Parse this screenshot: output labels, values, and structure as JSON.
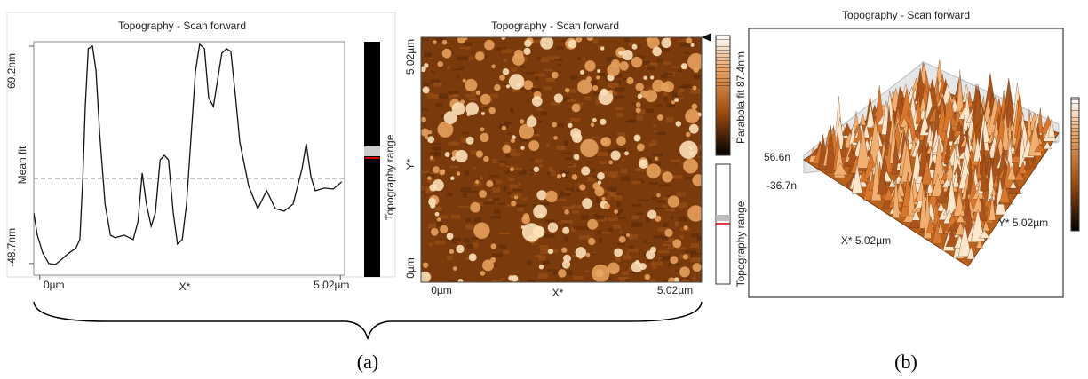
{
  "chart_data": {
    "type": "line",
    "title": "Topography - Scan forward",
    "x_label": "X*",
    "y_label": "Mean fit",
    "x": [
      -0.1,
      -0.04,
      0.05,
      0.15,
      0.26,
      0.37,
      0.49,
      0.6,
      0.67,
      0.72,
      0.76,
      0.81,
      0.88,
      0.94,
      1.0,
      1.09,
      1.18,
      1.26,
      1.41,
      1.56,
      1.64,
      1.71,
      1.78,
      1.86,
      1.93,
      2.01,
      2.08,
      2.15,
      2.23,
      2.3,
      2.38,
      2.45,
      2.52,
      2.6,
      2.67,
      2.75,
      2.82,
      2.9,
      2.97,
      3.04,
      3.12,
      3.19,
      3.27,
      3.34,
      3.49,
      3.64,
      3.79,
      3.93,
      4.08,
      4.23,
      4.38,
      4.45,
      4.53,
      4.6,
      4.75,
      4.9,
      5.04
    ],
    "values": [
      -21.3,
      -33.3,
      -42.9,
      -48.7,
      -49.2,
      -46.3,
      -42.9,
      -40.5,
      -35.7,
      -2.0,
      36.5,
      67.8,
      69.2,
      55.7,
      22.0,
      -16.5,
      -33.3,
      -34.7,
      -33.3,
      -35.7,
      -26.1,
      0.4,
      -16.5,
      -28.5,
      -21.3,
      7.6,
      10.0,
      7.6,
      -21.3,
      -38.1,
      -35.7,
      -16.5,
      17.2,
      55.7,
      70.2,
      67.8,
      41.3,
      36.5,
      50.9,
      65.4,
      67.8,
      66.3,
      41.3,
      17.2,
      -6.8,
      -18.9,
      -9.2,
      -18.9,
      -20.3,
      -16.5,
      2.8,
      16.3,
      -2.0,
      -9.2,
      -7.8,
      -8.3,
      -4.4
    ],
    "color": "#111111",
    "mean_line": -2.5,
    "xlim": [
      -0.1,
      5.09
    ],
    "ylim": [
      -55.0,
      71.6
    ],
    "xticks": [
      {
        "value": 0,
        "label": "0µm"
      },
      {
        "value": 5.02,
        "label": "5.02µm"
      }
    ],
    "yticks": [
      {
        "value": 69.2,
        "label": "69.2nm"
      },
      {
        "value": -48.7,
        "label": "-48.7nm"
      }
    ],
    "colorbar_label": "Topography range"
  },
  "image_panel": {
    "title": "Topography - Scan forward",
    "y_ticks": [
      "5.02µm",
      "Y*",
      "0µm"
    ],
    "x_ticks": [
      "0µm",
      "X*",
      "5.02µm"
    ],
    "colorbar_label": "Parabola fit 87.4nm",
    "range_label": "Topography range"
  },
  "surface_panel": {
    "title": "Topography - Scan forward",
    "z_top": "56.6n",
    "z_bottom": "-36.7n",
    "x_axis": "X* 5.02µm",
    "y_axis": "Y* 5.02µm"
  },
  "captions": [
    "(a)",
    "(b)"
  ]
}
